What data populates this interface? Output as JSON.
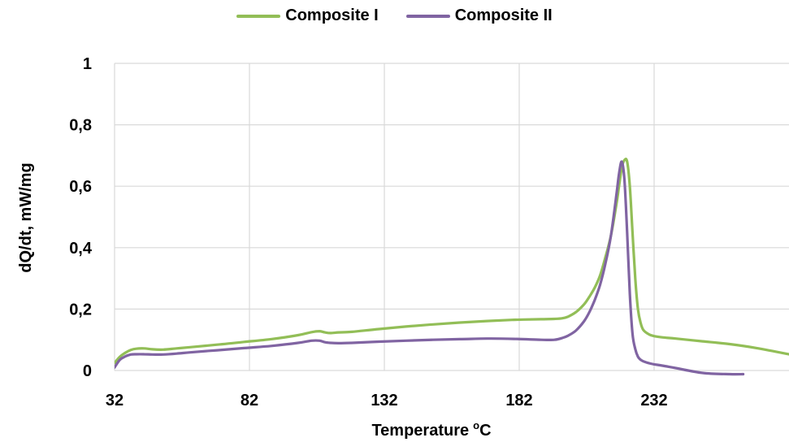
{
  "chart_data": {
    "type": "line",
    "xlabel": "Temperature",
    "xlabel_sup": "o",
    "xlabel_unit": "C",
    "ylabel": "dQ/dt, mW/mg",
    "xlim": [
      32,
      282
    ],
    "ylim": [
      0,
      1
    ],
    "x_ticks": [
      "32",
      "82",
      "132",
      "182",
      "232"
    ],
    "x_tick_values": [
      32,
      82,
      132,
      182,
      232
    ],
    "y_ticks": [
      "0",
      "0,2",
      "0,4",
      "0,6",
      "0,8",
      "1"
    ],
    "y_tick_values": [
      0,
      0.2,
      0.4,
      0.6,
      0.8,
      1
    ],
    "grid": "vertical and horizontal",
    "legend_position": "top-center",
    "series": [
      {
        "name": "Composite I",
        "color": "#92BE57",
        "x": [
          32,
          34,
          36,
          38,
          40,
          43,
          46,
          50,
          55,
          60,
          70,
          80,
          90,
          100,
          105,
          108,
          110,
          112,
          115,
          120,
          130,
          140,
          150,
          160,
          170,
          180,
          190,
          195,
          198,
          200,
          203,
          206,
          208,
          210,
          212,
          214,
          216,
          218,
          219,
          220,
          221,
          222,
          223,
          224,
          225,
          226,
          227,
          228,
          230,
          232,
          235,
          240,
          250,
          260,
          270,
          282
        ],
        "y": [
          0.025,
          0.045,
          0.058,
          0.067,
          0.071,
          0.072,
          0.069,
          0.068,
          0.072,
          0.076,
          0.084,
          0.093,
          0.102,
          0.115,
          0.125,
          0.128,
          0.124,
          0.122,
          0.124,
          0.126,
          0.135,
          0.143,
          0.15,
          0.156,
          0.161,
          0.165,
          0.167,
          0.168,
          0.17,
          0.175,
          0.19,
          0.215,
          0.24,
          0.27,
          0.31,
          0.37,
          0.44,
          0.54,
          0.6,
          0.66,
          0.685,
          0.68,
          0.6,
          0.45,
          0.3,
          0.2,
          0.155,
          0.132,
          0.118,
          0.112,
          0.108,
          0.104,
          0.095,
          0.086,
          0.073,
          0.053
        ]
      },
      {
        "name": "Composite II",
        "color": "#8064A2",
        "x": [
          32,
          34,
          36,
          38,
          40,
          43,
          46,
          50,
          55,
          60,
          70,
          80,
          90,
          100,
          105,
          108,
          110,
          112,
          115,
          120,
          130,
          140,
          150,
          160,
          170,
          180,
          190,
          195,
          198,
          200,
          203,
          206,
          208,
          210,
          212,
          214,
          216,
          218,
          219,
          220,
          221,
          222,
          223,
          224,
          225,
          226,
          227,
          228,
          230,
          232,
          235,
          240,
          250,
          260,
          265
        ],
        "y": [
          0.01,
          0.035,
          0.046,
          0.052,
          0.053,
          0.053,
          0.052,
          0.052,
          0.055,
          0.059,
          0.066,
          0.073,
          0.08,
          0.09,
          0.097,
          0.097,
          0.092,
          0.09,
          0.089,
          0.09,
          0.094,
          0.097,
          0.1,
          0.102,
          0.104,
          0.103,
          0.1,
          0.1,
          0.106,
          0.113,
          0.13,
          0.16,
          0.19,
          0.23,
          0.28,
          0.35,
          0.44,
          0.57,
          0.64,
          0.68,
          0.62,
          0.45,
          0.25,
          0.12,
          0.07,
          0.045,
          0.035,
          0.03,
          0.024,
          0.02,
          0.016,
          0.008,
          -0.008,
          -0.012,
          -0.012
        ]
      }
    ]
  }
}
